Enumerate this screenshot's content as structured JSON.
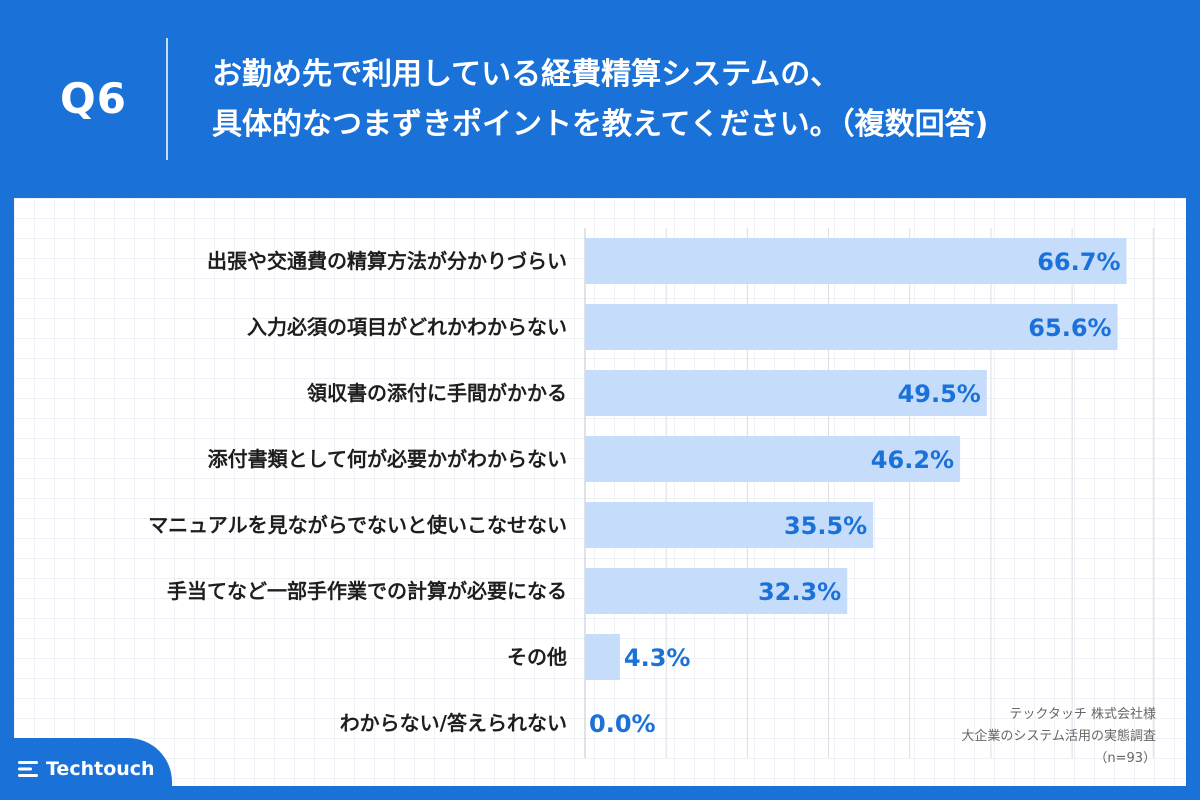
{
  "header": {
    "question_number": "Q6",
    "title_line1": "お勤め先で利用している経費精算システムの、",
    "title_line2": "具体的なつまずきポイントを教えてください。（複数回答)"
  },
  "chart_data": {
    "type": "bar",
    "orientation": "horizontal",
    "categories": [
      "出張や交通費の精算方法が分かりづらい",
      "入力必須の項目がどれかわからない",
      "領収書の添付に手間がかかる",
      "添付書類として何が必要かがわからない",
      "マニュアルを見ながらでないと使いこなせない",
      "手当てなど一部手作業での計算が必要になる",
      "その他",
      "わからない/答えられない"
    ],
    "values": [
      66.7,
      65.6,
      49.5,
      46.2,
      35.5,
      32.3,
      4.3,
      0.0
    ],
    "value_labels": [
      "66.7%",
      "65.6%",
      "49.5%",
      "46.2%",
      "35.5%",
      "32.3%",
      "4.3%",
      "0.0%"
    ],
    "xlim": [
      0,
      70
    ],
    "grid": true,
    "bar_color": "#c6dcfb",
    "label_color": "#1a72d9"
  },
  "source": {
    "line1": "テックタッチ 株式会社様",
    "line2": "大企業のシステム活用の実態調査",
    "line3": "（n=93）"
  },
  "logo": {
    "text": "Techtouch"
  }
}
